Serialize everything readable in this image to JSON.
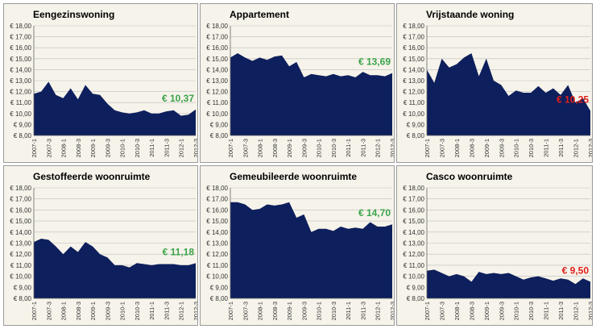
{
  "colors": {
    "area": "#0d1f5c",
    "panel_bg": "#f6f3ea",
    "border": "#9a9a9a",
    "grid": "#bdbdbd",
    "green": "#3aa34a",
    "red": "#e0201b"
  },
  "chart_data": [
    {
      "type": "area",
      "title": "Eengezinswoning",
      "x": [
        "2007-1",
        "2007-2",
        "2007-3",
        "2007-4",
        "2008-1",
        "2008-2",
        "2008-3",
        "2008-4",
        "2009-1",
        "2009-2",
        "2009-3",
        "2009-4",
        "2010-1",
        "2010-2",
        "2010-3",
        "2010-4",
        "2011-1",
        "2011-2",
        "2011-3",
        "2011-4",
        "2012-1",
        "2012-2",
        "2012-3"
      ],
      "x_tick_labels": [
        "2007-1",
        "2007-3",
        "2008-1",
        "2008-3",
        "2009-1",
        "2009-3",
        "2010-1",
        "2010-3",
        "2011-1",
        "2011-3",
        "2012-1",
        "2012-3"
      ],
      "values": [
        11.8,
        12.0,
        12.9,
        11.7,
        11.4,
        12.3,
        11.3,
        12.6,
        11.8,
        11.7,
        10.9,
        10.3,
        10.1,
        10.0,
        10.1,
        10.3,
        10.0,
        10.0,
        10.2,
        10.3,
        9.8,
        9.9,
        10.37
      ],
      "ylim": [
        8,
        18
      ],
      "y_tick_labels": [
        "€ 8,00",
        "€ 9,00",
        "€ 10,00",
        "€ 11,00",
        "€ 12,00",
        "€ 13,00",
        "€ 14,00",
        "€ 15,00",
        "€ 16,00",
        "€ 17,00",
        "€ 18,00"
      ],
      "annotation": {
        "text": "€ 10,37",
        "color": "green"
      }
    },
    {
      "type": "area",
      "title": "Appartement",
      "x": [
        "2007-1",
        "2007-2",
        "2007-3",
        "2007-4",
        "2008-1",
        "2008-2",
        "2008-3",
        "2008-4",
        "2009-1",
        "2009-2",
        "2009-3",
        "2009-4",
        "2010-1",
        "2010-2",
        "2010-3",
        "2010-4",
        "2011-1",
        "2011-2",
        "2011-3",
        "2011-4",
        "2012-1",
        "2012-2",
        "2012-3"
      ],
      "x_tick_labels": [
        "2007-1",
        "2007-3",
        "2008-1",
        "2008-3",
        "2009-1",
        "2009-3",
        "2010-1",
        "2010-3",
        "2011-1",
        "2011-3",
        "2012-1",
        "2012-3"
      ],
      "values": [
        15.1,
        15.5,
        15.1,
        14.8,
        15.1,
        14.9,
        15.2,
        15.3,
        14.3,
        14.7,
        13.3,
        13.6,
        13.5,
        13.4,
        13.6,
        13.4,
        13.5,
        13.3,
        13.8,
        13.5,
        13.5,
        13.4,
        13.69
      ],
      "ylim": [
        8,
        18
      ],
      "y_tick_labels": [
        "€ 8,00",
        "€ 9,00",
        "€ 10,00",
        "€ 11,00",
        "€ 12,00",
        "€ 13,00",
        "€ 14,00",
        "€ 15,00",
        "€ 16,00",
        "€ 17,00",
        "€ 18,00"
      ],
      "annotation": {
        "text": "€ 13,69",
        "color": "green"
      }
    },
    {
      "type": "area",
      "title": "Vrijstaande woning",
      "x": [
        "2007-1",
        "2007-2",
        "2007-3",
        "2007-4",
        "2008-1",
        "2008-2",
        "2008-3",
        "2008-4",
        "2009-1",
        "2009-2",
        "2009-3",
        "2009-4",
        "2010-1",
        "2010-2",
        "2010-3",
        "2010-4",
        "2011-1",
        "2011-2",
        "2011-3",
        "2011-4",
        "2012-1",
        "2012-2",
        "2012-3"
      ],
      "x_tick_labels": [
        "2007-1",
        "2007-3",
        "2008-1",
        "2008-3",
        "2009-1",
        "2009-3",
        "2010-1",
        "2010-3",
        "2011-1",
        "2011-3",
        "2012-1",
        "2012-3"
      ],
      "values": [
        14.0,
        12.8,
        15.0,
        14.2,
        14.5,
        15.1,
        15.5,
        13.4,
        15.0,
        13.0,
        12.6,
        11.6,
        12.1,
        11.9,
        11.9,
        12.5,
        11.9,
        12.3,
        11.7,
        12.6,
        11.0,
        11.4,
        10.25
      ],
      "ylim": [
        8,
        18
      ],
      "y_tick_labels": [
        "€ 8,00",
        "€ 9,00",
        "€ 10,00",
        "€ 11,00",
        "€ 12,00",
        "€ 13,00",
        "€ 14,00",
        "€ 15,00",
        "€ 16,00",
        "€ 17,00",
        "€ 18,00"
      ],
      "annotation": {
        "text": "€ 10,25",
        "color": "red"
      }
    },
    {
      "type": "area",
      "title": "Gestoffeerde woonruimte",
      "x": [
        "2007-1",
        "2007-2",
        "2007-3",
        "2007-4",
        "2008-1",
        "2008-2",
        "2008-3",
        "2008-4",
        "2009-1",
        "2009-2",
        "2009-3",
        "2009-4",
        "2010-1",
        "2010-2",
        "2010-3",
        "2010-4",
        "2011-1",
        "2011-2",
        "2011-3",
        "2011-4",
        "2012-1",
        "2012-2",
        "2012-3"
      ],
      "x_tick_labels": [
        "2007-1",
        "2007-3",
        "2008-1",
        "2008-3",
        "2009-1",
        "2009-3",
        "2010-1",
        "2010-3",
        "2011-1",
        "2011-3",
        "2012-1",
        "2012-3"
      ],
      "values": [
        13.1,
        13.4,
        13.3,
        12.7,
        12.0,
        12.7,
        12.2,
        13.1,
        12.7,
        12.0,
        11.7,
        11.0,
        11.0,
        10.8,
        11.2,
        11.1,
        11.0,
        11.1,
        11.1,
        11.1,
        11.0,
        11.0,
        11.18
      ],
      "ylim": [
        8,
        18
      ],
      "y_tick_labels": [
        "€ 8,00",
        "€ 9,00",
        "€ 10,00",
        "€ 11,00",
        "€ 12,00",
        "€ 13,00",
        "€ 14,00",
        "€ 15,00",
        "€ 16,00",
        "€ 17,00",
        "€ 18,00"
      ],
      "annotation": {
        "text": "€ 11,18",
        "color": "green"
      }
    },
    {
      "type": "area",
      "title": "Gemeubileerde woonruimte",
      "x": [
        "2007-1",
        "2007-2",
        "2007-3",
        "2007-4",
        "2008-1",
        "2008-2",
        "2008-3",
        "2008-4",
        "2009-1",
        "2009-2",
        "2009-3",
        "2009-4",
        "2010-1",
        "2010-2",
        "2010-3",
        "2010-4",
        "2011-1",
        "2011-2",
        "2011-3",
        "2011-4",
        "2012-1",
        "2012-2",
        "2012-3"
      ],
      "x_tick_labels": [
        "2007-1",
        "2007-3",
        "2008-1",
        "2008-3",
        "2009-1",
        "2009-3",
        "2010-1",
        "2010-3",
        "2011-1",
        "2011-3",
        "2012-1",
        "2012-3"
      ],
      "values": [
        16.7,
        16.7,
        16.5,
        16.0,
        16.1,
        16.5,
        16.4,
        16.5,
        16.7,
        15.3,
        15.6,
        14.0,
        14.3,
        14.3,
        14.1,
        14.5,
        14.3,
        14.4,
        14.3,
        14.9,
        14.5,
        14.5,
        14.7
      ],
      "ylim": [
        8,
        18
      ],
      "y_tick_labels": [
        "€ 8,00",
        "€ 9,00",
        "€ 10,00",
        "€ 11,00",
        "€ 12,00",
        "€ 13,00",
        "€ 14,00",
        "€ 15,00",
        "€ 16,00",
        "€ 17,00",
        "€ 18,00"
      ],
      "annotation": {
        "text": "€ 14,70",
        "color": "green"
      }
    },
    {
      "type": "area",
      "title": "Casco woonruimte",
      "x": [
        "2007-1",
        "2007-2",
        "2007-3",
        "2007-4",
        "2008-1",
        "2008-2",
        "2008-3",
        "2008-4",
        "2009-1",
        "2009-2",
        "2009-3",
        "2009-4",
        "2010-1",
        "2010-2",
        "2010-3",
        "2010-4",
        "2011-1",
        "2011-2",
        "2011-3",
        "2011-4",
        "2012-1",
        "2012-2",
        "2012-3"
      ],
      "x_tick_labels": [
        "2007-1",
        "2007-3",
        "2008-1",
        "2008-3",
        "2009-1",
        "2009-3",
        "2010-1",
        "2010-3",
        "2011-1",
        "2011-3",
        "2012-1",
        "2012-3"
      ],
      "values": [
        10.5,
        10.6,
        10.3,
        10.0,
        10.2,
        10.0,
        9.5,
        10.4,
        10.2,
        10.3,
        10.2,
        10.3,
        10.0,
        9.7,
        9.9,
        10.0,
        9.8,
        9.6,
        9.8,
        9.7,
        9.3,
        9.8,
        9.5
      ],
      "ylim": [
        8,
        18
      ],
      "y_tick_labels": [
        "€ 8,00",
        "€ 9,00",
        "€ 10,00",
        "€ 11,00",
        "€ 12,00",
        "€ 13,00",
        "€ 14,00",
        "€ 15,00",
        "€ 16,00",
        "€ 17,00",
        "€ 18,00"
      ],
      "annotation": {
        "text": "€ 9,50",
        "color": "red"
      }
    }
  ]
}
